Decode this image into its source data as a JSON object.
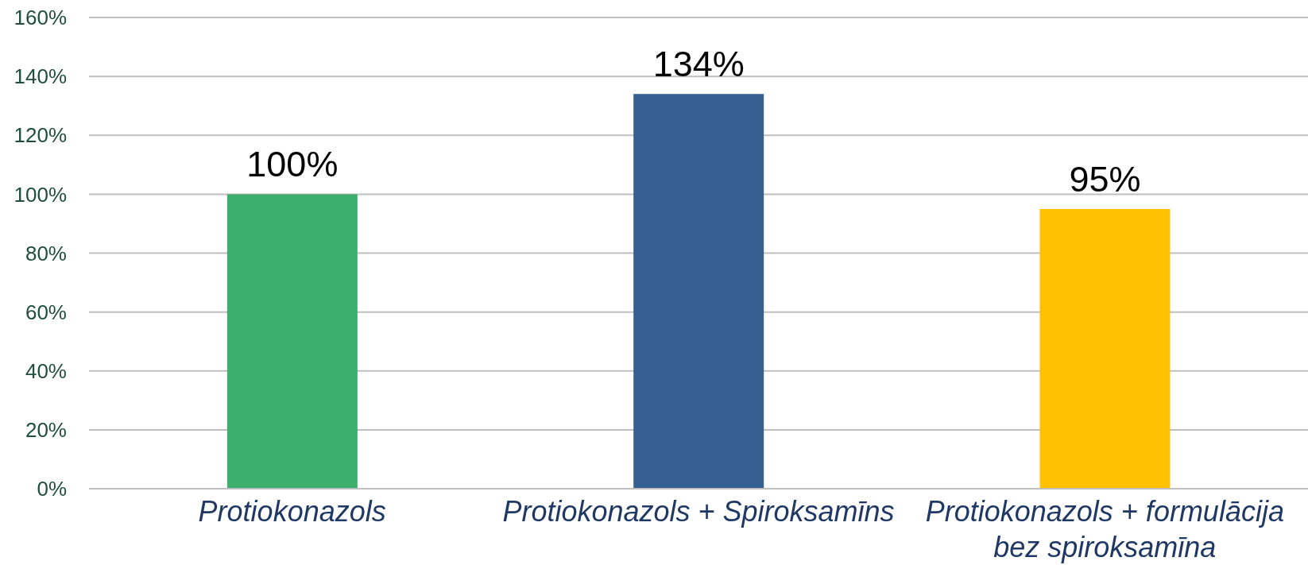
{
  "chart_data": {
    "type": "bar",
    "categories": [
      "Protiokonazols",
      "Protiokonazols + Spiroksamīns",
      "Protiokonazols + formulācija bez spiroksamīna"
    ],
    "values": [
      100,
      134,
      95
    ],
    "colors": [
      "#3cae6e",
      "#366092",
      "#fec000"
    ],
    "value_labels": [
      "100%",
      "134%",
      "95%"
    ],
    "ylim": [
      0,
      160
    ],
    "yticks": [
      {
        "value": 0,
        "label": "0%"
      },
      {
        "value": 20,
        "label": "20%"
      },
      {
        "value": 40,
        "label": "40%"
      },
      {
        "value": 60,
        "label": "60%"
      },
      {
        "value": 80,
        "label": "80%"
      },
      {
        "value": 100,
        "label": "100%"
      },
      {
        "value": 120,
        "label": "120%"
      },
      {
        "value": 140,
        "label": "140%"
      },
      {
        "value": 160,
        "label": "160%"
      }
    ],
    "grid": "y"
  }
}
